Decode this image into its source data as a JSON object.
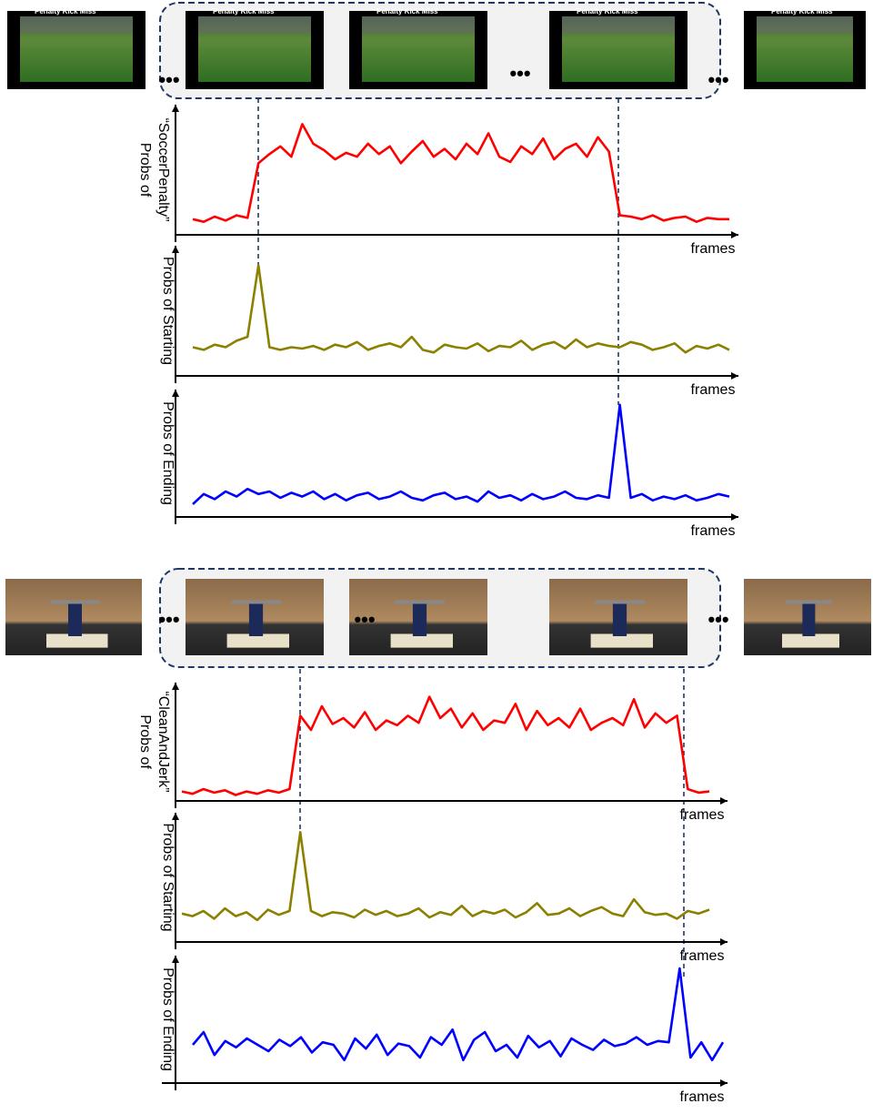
{
  "frame_captions": [
    "Penalty Kick Miss",
    "Penalty Kick Miss",
    "Penalty Kick Miss",
    "Penalty Kick Miss",
    "Penalty Kick Miss"
  ],
  "chart_data": [
    {
      "type": "line",
      "ylabel": [
        "Probs of",
        "“SoccerPenalty”"
      ],
      "xlabel": "frames",
      "color": "#ff0000",
      "xlim": [
        0,
        49
      ],
      "ylim": [
        0,
        1
      ],
      "values": [
        0.12,
        0.1,
        0.14,
        0.11,
        0.15,
        0.13,
        0.55,
        0.62,
        0.68,
        0.6,
        0.85,
        0.7,
        0.65,
        0.58,
        0.63,
        0.6,
        0.7,
        0.62,
        0.68,
        0.55,
        0.64,
        0.72,
        0.6,
        0.66,
        0.58,
        0.7,
        0.62,
        0.78,
        0.6,
        0.56,
        0.68,
        0.62,
        0.74,
        0.58,
        0.66,
        0.7,
        0.6,
        0.75,
        0.64,
        0.15,
        0.14,
        0.12,
        0.15,
        0.11,
        0.13,
        0.14,
        0.1,
        0.13,
        0.12,
        0.12
      ]
    },
    {
      "type": "line",
      "ylabel": [
        "Probs of Starting"
      ],
      "xlabel": "frames",
      "color": "#8b8000",
      "xlim": [
        0,
        49
      ],
      "ylim": [
        0,
        1
      ],
      "values": [
        0.22,
        0.2,
        0.24,
        0.22,
        0.27,
        0.3,
        0.85,
        0.22,
        0.2,
        0.22,
        0.21,
        0.23,
        0.2,
        0.24,
        0.22,
        0.26,
        0.2,
        0.23,
        0.25,
        0.22,
        0.3,
        0.2,
        0.18,
        0.24,
        0.22,
        0.21,
        0.25,
        0.19,
        0.23,
        0.22,
        0.27,
        0.2,
        0.24,
        0.26,
        0.21,
        0.28,
        0.22,
        0.25,
        0.23,
        0.22,
        0.26,
        0.24,
        0.2,
        0.22,
        0.25,
        0.18,
        0.23,
        0.21,
        0.24,
        0.2
      ]
    },
    {
      "type": "line",
      "ylabel": [
        "Probs of Ending"
      ],
      "xlabel": "frames",
      "color": "#0000ff",
      "xlim": [
        0,
        49
      ],
      "ylim": [
        0,
        1
      ],
      "values": [
        0.1,
        0.18,
        0.14,
        0.2,
        0.16,
        0.22,
        0.18,
        0.2,
        0.15,
        0.19,
        0.16,
        0.2,
        0.14,
        0.18,
        0.13,
        0.17,
        0.19,
        0.14,
        0.16,
        0.2,
        0.15,
        0.13,
        0.17,
        0.19,
        0.14,
        0.16,
        0.12,
        0.2,
        0.15,
        0.17,
        0.13,
        0.18,
        0.14,
        0.16,
        0.2,
        0.15,
        0.14,
        0.17,
        0.15,
        0.88,
        0.15,
        0.18,
        0.13,
        0.16,
        0.14,
        0.17,
        0.13,
        0.15,
        0.18,
        0.16
      ]
    },
    {
      "type": "line",
      "ylabel": [
        "Probs of",
        "“CleanAndJerk”"
      ],
      "xlabel": "frames",
      "color": "#ff0000",
      "xlim": [
        0,
        49
      ],
      "ylim": [
        0,
        1
      ],
      "values": [
        0.08,
        0.06,
        0.1,
        0.07,
        0.09,
        0.05,
        0.08,
        0.06,
        0.09,
        0.07,
        0.1,
        0.72,
        0.6,
        0.8,
        0.65,
        0.7,
        0.62,
        0.75,
        0.6,
        0.68,
        0.64,
        0.72,
        0.66,
        0.88,
        0.7,
        0.78,
        0.62,
        0.74,
        0.6,
        0.68,
        0.66,
        0.82,
        0.6,
        0.76,
        0.64,
        0.7,
        0.62,
        0.78,
        0.6,
        0.66,
        0.7,
        0.64,
        0.86,
        0.62,
        0.74,
        0.66,
        0.72,
        0.1,
        0.07,
        0.08
      ]
    },
    {
      "type": "line",
      "ylabel": [
        "Probs of Starting"
      ],
      "xlabel": "frames",
      "color": "#8b8000",
      "xlim": [
        0,
        49
      ],
      "ylim": [
        0,
        1
      ],
      "values": [
        0.22,
        0.2,
        0.24,
        0.18,
        0.26,
        0.2,
        0.23,
        0.17,
        0.25,
        0.21,
        0.24,
        0.85,
        0.24,
        0.2,
        0.23,
        0.22,
        0.19,
        0.25,
        0.21,
        0.24,
        0.2,
        0.22,
        0.26,
        0.19,
        0.23,
        0.21,
        0.28,
        0.2,
        0.24,
        0.22,
        0.25,
        0.19,
        0.23,
        0.3,
        0.21,
        0.22,
        0.26,
        0.2,
        0.24,
        0.27,
        0.22,
        0.2,
        0.33,
        0.23,
        0.21,
        0.22,
        0.18,
        0.24,
        0.22,
        0.25
      ]
    },
    {
      "type": "line",
      "ylabel": [
        "Probs of Ending"
      ],
      "xlabel": "frames",
      "color": "#0000ff",
      "xlim": [
        0,
        49
      ],
      "ylim": [
        0,
        1
      ],
      "values": [
        0.3,
        0.4,
        0.22,
        0.33,
        0.28,
        0.35,
        0.3,
        0.25,
        0.34,
        0.29,
        0.36,
        0.24,
        0.32,
        0.3,
        0.18,
        0.35,
        0.27,
        0.38,
        0.22,
        0.31,
        0.29,
        0.2,
        0.36,
        0.3,
        0.42,
        0.18,
        0.34,
        0.4,
        0.25,
        0.3,
        0.2,
        0.37,
        0.28,
        0.33,
        0.21,
        0.35,
        0.3,
        0.26,
        0.34,
        0.29,
        0.31,
        0.36,
        0.3,
        0.33,
        0.32,
        0.9,
        0.2,
        0.32,
        0.18,
        0.32
      ]
    }
  ]
}
